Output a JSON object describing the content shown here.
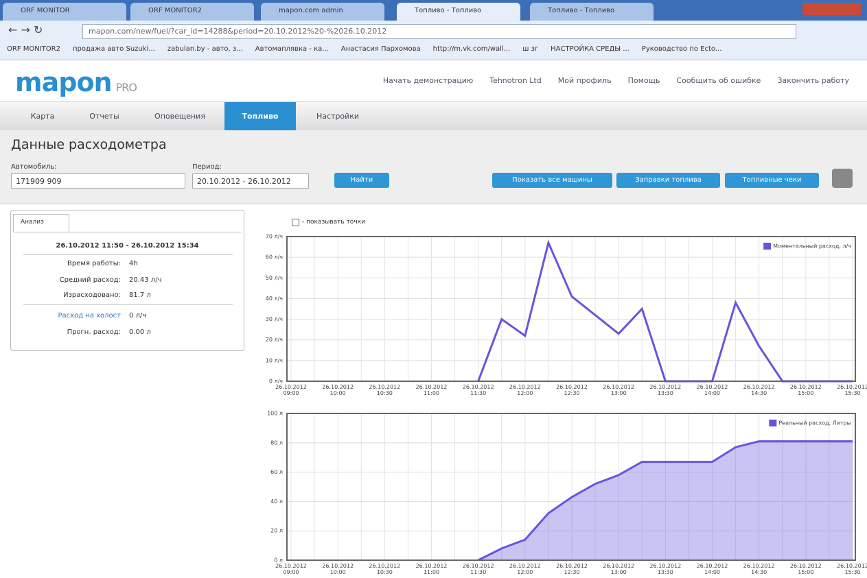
{
  "browser": {
    "tabs": [
      "ORF MONITOR",
      "ORF MONITOR2",
      "mapon.com admin",
      "Топливо - Топливо",
      "Топливо - Топливо"
    ],
    "url": "mapon.com/new/fuel/?car_id=14288&period=20.10.2012%20-%2026.10.2012",
    "bookmarks": [
      "ORF MONITOR2",
      "продажа авто Suzuki...",
      "zabulan.by - авто, з...",
      "Автомаплявка - ка...",
      "Анастасия Пархомова",
      "http://m.vk.com/wall...",
      "ш зг",
      "НАСТРОЙКА СРЕДЫ ...",
      "Руководство по Ecto..."
    ]
  },
  "header": {
    "logo": "mapon",
    "logo_suffix": "PRO",
    "links": [
      "Начать демонстрацию",
      "Tehnotron Ltd",
      "Мой профиль",
      "Помощь",
      "Сообщить об ошибке",
      "Закончить работу"
    ]
  },
  "nav": [
    "Карта",
    "Отчеты",
    "Оповещения",
    "Топливо",
    "Настройки"
  ],
  "page": {
    "title": "Данные расходометра",
    "car_label": "Автомобиль:",
    "car_value": "171909 909",
    "period_label": "Период:",
    "period_value": "20.10.2012 - 26.10.2012",
    "find_button": "Найти",
    "buttons": [
      "Показать все машины",
      "Заправки топлива",
      "Топливные чеки"
    ],
    "show_points": "- показывать точки"
  },
  "panel": {
    "tab": "Анализ",
    "range": "26.10.2012 11:50 - 26.10.2012 15:34",
    "rows": [
      [
        "Время работы:",
        "4h"
      ],
      [
        "Средний расход:",
        "20.43 л/ч"
      ],
      [
        "Израсходовано:",
        "81.7 л"
      ]
    ],
    "idle_label": "Расход на холост",
    "idle_value": "0 л/ч",
    "forecast_label": "Прогн. расход:",
    "forecast_value": "0.00 л"
  },
  "chart_data": [
    {
      "type": "line",
      "categories": [
        "26.10.2012 09:00",
        null,
        "26.10.2012 10:00",
        null,
        "26.10.2012 10:30",
        null,
        "26.10.2012 11:00",
        null,
        "26.10.2012 11:30",
        null,
        "26.10.2012 12:00",
        null,
        "26.10.2012 12:30",
        null,
        "26.10.2012 13:00",
        null,
        "26.10.2012 13:30",
        null,
        "26.10.2012 14:00",
        null,
        "26.10.2012 14:30",
        null,
        "26.10.2012 15:00",
        null,
        "26.10.2012 15:30"
      ],
      "series": [
        {
          "name": "Моментальный расход, л/ч",
          "color": "#6655dd",
          "values": [
            null,
            null,
            null,
            null,
            null,
            null,
            null,
            null,
            0,
            30,
            22,
            67,
            41,
            32,
            23,
            35,
            0,
            0,
            0,
            38,
            17,
            0,
            0,
            0,
            0
          ]
        }
      ],
      "ylim": [
        0,
        70
      ],
      "yticks": [
        {
          "value": 0,
          "label": "0 л/ч"
        },
        {
          "value": 10,
          "label": "10 л/ч"
        },
        {
          "value": 20,
          "label": "20 л/ч"
        },
        {
          "value": 30,
          "label": "30 л/ч"
        },
        {
          "value": 40,
          "label": "40 л/ч"
        },
        {
          "value": 50,
          "label": "50 л/ч"
        },
        {
          "value": 60,
          "label": "60 л/ч"
        },
        {
          "value": 70,
          "label": "70 л/ч"
        }
      ],
      "grid": true,
      "legend": "top-right"
    },
    {
      "type": "area",
      "categories": [
        "26.10.2012 09:00",
        null,
        "26.10.2012 10:00",
        null,
        "26.10.2012 10:30",
        null,
        "26.10.2012 11:00",
        null,
        "26.10.2012 11:30",
        null,
        "26.10.2012 12:00",
        null,
        "26.10.2012 12:30",
        null,
        "26.10.2012 13:00",
        null,
        "26.10.2012 13:30",
        null,
        "26.10.2012 14:00",
        null,
        "26.10.2012 14:30",
        null,
        "26.10.2012 15:00",
        null,
        "26.10.2012 15:30"
      ],
      "series": [
        {
          "name": "Реальный расход, Литры",
          "color": "#6655dd",
          "values": [
            null,
            null,
            null,
            null,
            null,
            null,
            null,
            null,
            0,
            8,
            14,
            32,
            43,
            52,
            58,
            67,
            67,
            67,
            67,
            77,
            81,
            81,
            81,
            81,
            81
          ]
        }
      ],
      "ylim": [
        0,
        100
      ],
      "yticks": [
        {
          "value": 0,
          "label": "0 л"
        },
        {
          "value": 20,
          "label": "20 л"
        },
        {
          "value": 40,
          "label": "40 л"
        },
        {
          "value": 60,
          "label": "60 л"
        },
        {
          "value": 80,
          "label": "80 л"
        },
        {
          "value": 100,
          "label": "100 л"
        }
      ],
      "grid": true,
      "legend": "top-right"
    }
  ]
}
